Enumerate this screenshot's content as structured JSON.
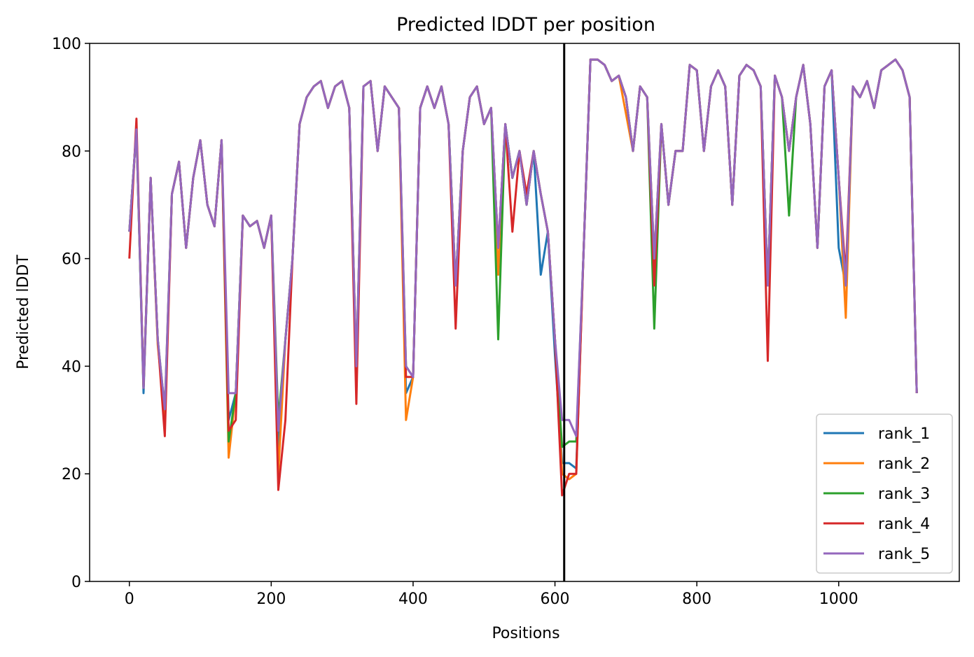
{
  "chart_data": {
    "type": "line",
    "title": "Predicted lDDT per position",
    "xlabel": "Positions",
    "ylabel": "Predicted lDDT",
    "xlim": [
      -56,
      1170
    ],
    "ylim": [
      0,
      100
    ],
    "xticks": [
      0,
      200,
      400,
      600,
      800,
      1000
    ],
    "yticks": [
      0,
      20,
      40,
      60,
      80,
      100
    ],
    "grid": false,
    "legend": "lower right",
    "vlines": [
      613
    ],
    "x": [
      0,
      10,
      20,
      30,
      40,
      50,
      60,
      70,
      80,
      90,
      100,
      110,
      120,
      130,
      140,
      150,
      160,
      170,
      180,
      190,
      200,
      210,
      220,
      230,
      240,
      250,
      260,
      270,
      280,
      290,
      300,
      310,
      320,
      330,
      340,
      350,
      360,
      370,
      380,
      390,
      400,
      410,
      420,
      430,
      440,
      450,
      460,
      470,
      480,
      490,
      500,
      510,
      520,
      530,
      540,
      550,
      560,
      570,
      580,
      590,
      600,
      610,
      620,
      630,
      640,
      650,
      660,
      670,
      680,
      690,
      700,
      710,
      720,
      730,
      740,
      750,
      760,
      770,
      780,
      790,
      800,
      810,
      820,
      830,
      840,
      850,
      860,
      870,
      880,
      890,
      900,
      910,
      920,
      930,
      940,
      950,
      960,
      970,
      980,
      990,
      1000,
      1010,
      1020,
      1030,
      1040,
      1050,
      1060,
      1070,
      1080,
      1090,
      1100,
      1110
    ],
    "series": [
      {
        "name": "rank_1",
        "color": "#1f77b4",
        "values": [
          65,
          84,
          35,
          75,
          45,
          30,
          72,
          78,
          62,
          75,
          82,
          70,
          66,
          82,
          30,
          35,
          68,
          66,
          67,
          62,
          68,
          25,
          45,
          60,
          85,
          90,
          92,
          93,
          88,
          92,
          93,
          88,
          37,
          92,
          93,
          80,
          92,
          90,
          88,
          35,
          38,
          88,
          92,
          88,
          92,
          85,
          55,
          80,
          90,
          92,
          85,
          88,
          62,
          85,
          75,
          80,
          70,
          80,
          57,
          65,
          42,
          22,
          22,
          21,
          60,
          97,
          97,
          96,
          93,
          94,
          90,
          80,
          92,
          90,
          60,
          85,
          70,
          80,
          80,
          96,
          95,
          80,
          92,
          95,
          92,
          70,
          94,
          96,
          95,
          92,
          55,
          94,
          90,
          80,
          90,
          96,
          85,
          62,
          92,
          95,
          62,
          55,
          92,
          90,
          93,
          88,
          95,
          96,
          97,
          95,
          90,
          35
        ]
      },
      {
        "name": "rank_2",
        "color": "#ff7f0e",
        "values": [
          65,
          84,
          36,
          75,
          44,
          31,
          72,
          78,
          62,
          75,
          82,
          70,
          66,
          82,
          23,
          35,
          68,
          66,
          67,
          62,
          68,
          20,
          45,
          60,
          85,
          90,
          92,
          93,
          88,
          92,
          93,
          88,
          40,
          92,
          93,
          80,
          92,
          90,
          88,
          30,
          38,
          88,
          92,
          88,
          92,
          85,
          55,
          80,
          90,
          92,
          85,
          88,
          57,
          85,
          75,
          80,
          70,
          80,
          72,
          65,
          45,
          20,
          19,
          20,
          60,
          97,
          97,
          96,
          93,
          94,
          87,
          80,
          92,
          90,
          60,
          85,
          70,
          80,
          80,
          96,
          95,
          80,
          92,
          95,
          92,
          70,
          94,
          96,
          95,
          92,
          55,
          94,
          90,
          80,
          90,
          96,
          85,
          62,
          92,
          95,
          75,
          49,
          92,
          90,
          93,
          88,
          95,
          96,
          97,
          95,
          90,
          35
        ]
      },
      {
        "name": "rank_3",
        "color": "#2ca02c",
        "values": [
          65,
          84,
          36,
          75,
          45,
          32,
          72,
          78,
          62,
          75,
          82,
          70,
          66,
          82,
          26,
          35,
          68,
          66,
          67,
          62,
          68,
          30,
          45,
          60,
          85,
          90,
          92,
          93,
          88,
          92,
          93,
          88,
          40,
          92,
          93,
          80,
          92,
          90,
          88,
          40,
          38,
          88,
          92,
          88,
          92,
          85,
          55,
          80,
          90,
          92,
          85,
          88,
          45,
          85,
          75,
          80,
          70,
          80,
          72,
          65,
          45,
          25,
          26,
          26,
          60,
          97,
          97,
          96,
          93,
          94,
          90,
          80,
          92,
          90,
          47,
          85,
          70,
          80,
          80,
          96,
          95,
          80,
          92,
          95,
          92,
          70,
          94,
          96,
          95,
          92,
          55,
          94,
          90,
          68,
          90,
          96,
          85,
          62,
          92,
          95,
          75,
          55,
          92,
          90,
          93,
          88,
          95,
          96,
          97,
          95,
          90,
          35
        ]
      },
      {
        "name": "rank_4",
        "color": "#d62728",
        "values": [
          60,
          86,
          36,
          75,
          45,
          27,
          72,
          78,
          62,
          75,
          82,
          70,
          66,
          82,
          28,
          30,
          68,
          66,
          67,
          62,
          68,
          17,
          30,
          60,
          85,
          90,
          92,
          93,
          88,
          92,
          93,
          88,
          33,
          92,
          93,
          80,
          92,
          90,
          88,
          38,
          38,
          88,
          92,
          88,
          92,
          85,
          47,
          80,
          90,
          92,
          85,
          88,
          62,
          85,
          65,
          80,
          72,
          80,
          72,
          65,
          45,
          16,
          20,
          20,
          60,
          97,
          97,
          96,
          93,
          94,
          90,
          80,
          92,
          90,
          55,
          85,
          70,
          80,
          80,
          96,
          95,
          80,
          92,
          95,
          92,
          70,
          94,
          96,
          95,
          92,
          41,
          94,
          90,
          80,
          90,
          96,
          85,
          62,
          92,
          95,
          75,
          57,
          92,
          90,
          93,
          88,
          95,
          96,
          97,
          95,
          90,
          35
        ]
      },
      {
        "name": "rank_5",
        "color": "#9467bd",
        "values": [
          65,
          84,
          36,
          75,
          45,
          32,
          72,
          78,
          62,
          75,
          82,
          70,
          66,
          82,
          35,
          35,
          68,
          66,
          67,
          62,
          68,
          28,
          45,
          60,
          85,
          90,
          92,
          93,
          88,
          92,
          93,
          88,
          40,
          92,
          93,
          80,
          92,
          90,
          88,
          40,
          38,
          88,
          92,
          88,
          92,
          85,
          55,
          80,
          90,
          92,
          85,
          88,
          62,
          85,
          75,
          80,
          70,
          80,
          72,
          65,
          45,
          30,
          30,
          27,
          60,
          97,
          97,
          96,
          93,
          94,
          90,
          80,
          92,
          90,
          60,
          85,
          70,
          80,
          80,
          96,
          95,
          80,
          92,
          95,
          92,
          70,
          94,
          96,
          95,
          92,
          55,
          94,
          90,
          80,
          90,
          96,
          85,
          62,
          92,
          95,
          75,
          55,
          92,
          90,
          93,
          88,
          95,
          96,
          97,
          95,
          90,
          35
        ]
      }
    ]
  }
}
